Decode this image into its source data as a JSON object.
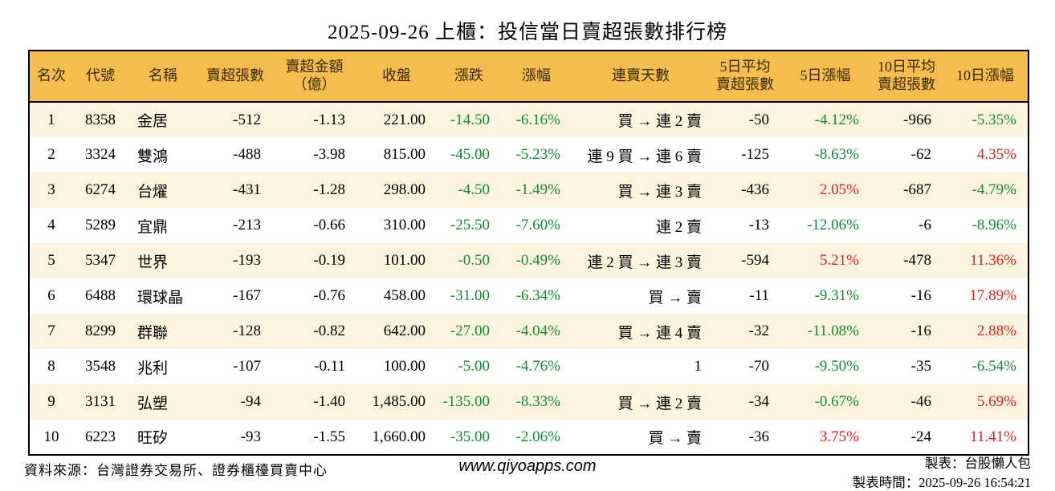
{
  "title": "2025-09-26 上櫃：投信當日賣超張數排行榜",
  "table": {
    "headers": {
      "rank": "名次",
      "code": "代號",
      "name": "名稱",
      "net_sell": "賣超張數",
      "net_sell_amount": "賣超金額\n（億）",
      "close": "收盤",
      "change": "漲跌",
      "change_pct": "漲幅",
      "streak": "連賣天數",
      "avg5_net_sell": "5日平均\n賣超張數",
      "pct5": "5日漲幅",
      "avg10_net_sell": "10日平均\n賣超張數",
      "pct10": "10日漲幅"
    },
    "rows": [
      {
        "rank": "1",
        "code": "8358",
        "name": "金居",
        "net_sell": "-512",
        "net_sell_amount": "-1.13",
        "close": "221.00",
        "change": "-14.50",
        "change_pct": "-6.16%",
        "streak": "買 → 連 2 賣",
        "avg5_net_sell": "-50",
        "pct5": "-4.12%",
        "avg10_net_sell": "-966",
        "pct10": "-5.35%"
      },
      {
        "rank": "2",
        "code": "3324",
        "name": "雙鴻",
        "net_sell": "-488",
        "net_sell_amount": "-3.98",
        "close": "815.00",
        "change": "-45.00",
        "change_pct": "-5.23%",
        "streak": "連 9 買 → 連 6 賣",
        "avg5_net_sell": "-125",
        "pct5": "-8.63%",
        "avg10_net_sell": "-62",
        "pct10": "4.35%"
      },
      {
        "rank": "3",
        "code": "6274",
        "name": "台燿",
        "net_sell": "-431",
        "net_sell_amount": "-1.28",
        "close": "298.00",
        "change": "-4.50",
        "change_pct": "-1.49%",
        "streak": "買 → 連 3 賣",
        "avg5_net_sell": "-436",
        "pct5": "2.05%",
        "avg10_net_sell": "-687",
        "pct10": "-4.79%"
      },
      {
        "rank": "4",
        "code": "5289",
        "name": "宜鼎",
        "net_sell": "-213",
        "net_sell_amount": "-0.66",
        "close": "310.00",
        "change": "-25.50",
        "change_pct": "-7.60%",
        "streak": "連 2 賣",
        "avg5_net_sell": "-13",
        "pct5": "-12.06%",
        "avg10_net_sell": "-6",
        "pct10": "-8.96%"
      },
      {
        "rank": "5",
        "code": "5347",
        "name": "世界",
        "net_sell": "-193",
        "net_sell_amount": "-0.19",
        "close": "101.00",
        "change": "-0.50",
        "change_pct": "-0.49%",
        "streak": "連 2 買 → 連 3 賣",
        "avg5_net_sell": "-594",
        "pct5": "5.21%",
        "avg10_net_sell": "-478",
        "pct10": "11.36%"
      },
      {
        "rank": "6",
        "code": "6488",
        "name": "環球晶",
        "net_sell": "-167",
        "net_sell_amount": "-0.76",
        "close": "458.00",
        "change": "-31.00",
        "change_pct": "-6.34%",
        "streak": "買 → 賣",
        "avg5_net_sell": "-11",
        "pct5": "-9.31%",
        "avg10_net_sell": "-16",
        "pct10": "17.89%"
      },
      {
        "rank": "7",
        "code": "8299",
        "name": "群聯",
        "net_sell": "-128",
        "net_sell_amount": "-0.82",
        "close": "642.00",
        "change": "-27.00",
        "change_pct": "-4.04%",
        "streak": "買 → 連 4 賣",
        "avg5_net_sell": "-32",
        "pct5": "-11.08%",
        "avg10_net_sell": "-16",
        "pct10": "2.88%"
      },
      {
        "rank": "8",
        "code": "3548",
        "name": "兆利",
        "net_sell": "-107",
        "net_sell_amount": "-0.11",
        "close": "100.00",
        "change": "-5.00",
        "change_pct": "-4.76%",
        "streak": "1",
        "avg5_net_sell": "-70",
        "pct5": "-9.50%",
        "avg10_net_sell": "-35",
        "pct10": "-6.54%"
      },
      {
        "rank": "9",
        "code": "3131",
        "name": "弘塑",
        "net_sell": "-94",
        "net_sell_amount": "-1.40",
        "close": "1,485.00",
        "change": "-135.00",
        "change_pct": "-8.33%",
        "streak": "買 → 連 2 賣",
        "avg5_net_sell": "-34",
        "pct5": "-0.67%",
        "avg10_net_sell": "-46",
        "pct10": "5.69%"
      },
      {
        "rank": "10",
        "code": "6223",
        "name": "旺矽",
        "net_sell": "-93",
        "net_sell_amount": "-1.55",
        "close": "1,660.00",
        "change": "-35.00",
        "change_pct": "-2.06%",
        "streak": "買 → 賣",
        "avg5_net_sell": "-36",
        "pct5": "3.75%",
        "avg10_net_sell": "-24",
        "pct10": "11.41%"
      }
    ]
  },
  "footer": {
    "source": "資料來源：台灣證券交易所、證券櫃檯買賣中心",
    "website": "www.qiyoapps.com",
    "maker": "製表：台股懶人包",
    "made_time": "製表時間：2025-09-26 16:54:21"
  },
  "colors": {
    "header_bg": "#f5bd4e",
    "row_alt_bg": "#fcf4de",
    "positive_red": "#dd2222",
    "negative_green": "#128a34"
  }
}
